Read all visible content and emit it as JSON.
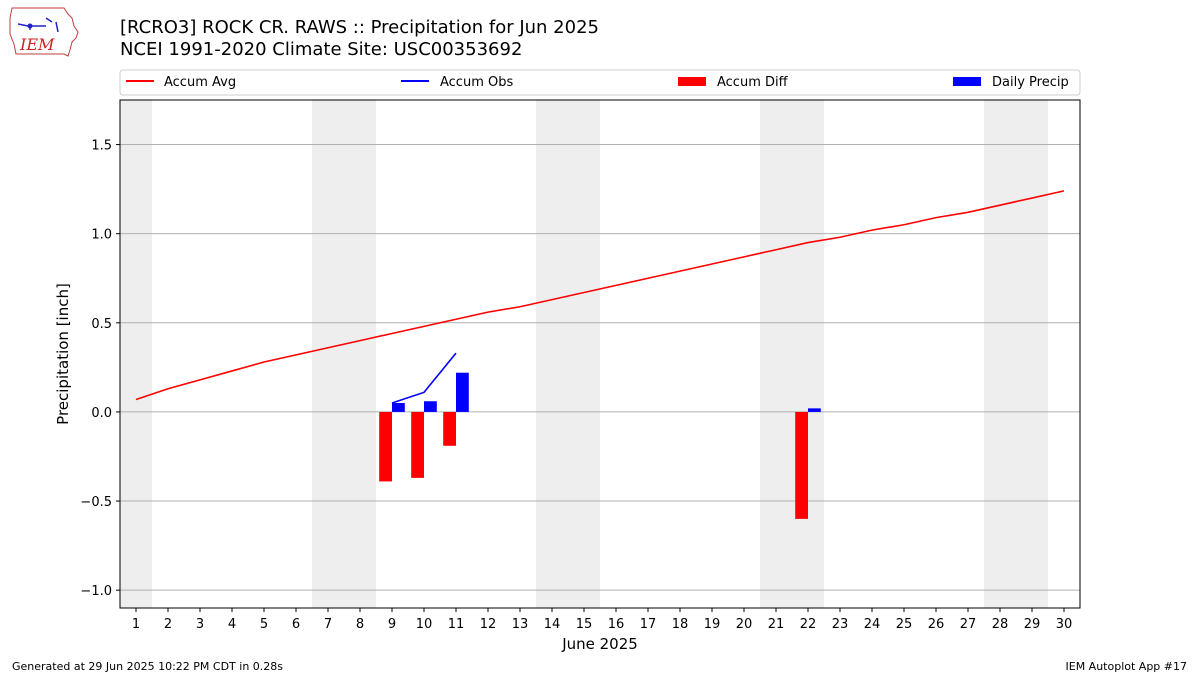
{
  "header": {
    "title_line1": "[RCRO3] ROCK CR. RAWS :: Precipitation for Jun 2025",
    "title_line2": "NCEI 1991-2020 Climate Site: USC00353692",
    "logo_text": "IEM"
  },
  "footer": {
    "left": "Generated at 29 Jun 2025 10:22 PM CDT in 0.28s",
    "right": "IEM Autoplot App #17"
  },
  "colors": {
    "accum_avg": "#ff0000",
    "accum_obs": "#0000ff",
    "accum_diff": "#ff0000",
    "daily_precip": "#0000ff",
    "weekend_shade": "#eeeeee",
    "grid": "#b0b0b0"
  },
  "chart_data": {
    "type": "bar",
    "title": "[RCRO3] ROCK CR. RAWS :: Precipitation for Jun 2025",
    "subtitle": "NCEI 1991-2020 Climate Site: USC00353692",
    "xlabel": "June 2025",
    "ylabel": "Precipitation [inch]",
    "xlim": [
      0.5,
      30.5
    ],
    "ylim": [
      -1.1,
      1.75
    ],
    "yticks": [
      -1.0,
      -0.5,
      0.0,
      0.5,
      1.0,
      1.5
    ],
    "ytick_labels": [
      "−1.0",
      "−0.5",
      "0.0",
      "0.5",
      "1.0",
      "1.5"
    ],
    "days": [
      1,
      2,
      3,
      4,
      5,
      6,
      7,
      8,
      9,
      10,
      11,
      12,
      13,
      14,
      15,
      16,
      17,
      18,
      19,
      20,
      21,
      22,
      23,
      24,
      25,
      26,
      27,
      28,
      29,
      30
    ],
    "grid": "y",
    "legend_position": "top",
    "weekend_shading": [
      [
        0.5,
        1.5
      ],
      [
        6.5,
        8.5
      ],
      [
        13.5,
        15.5
      ],
      [
        20.5,
        22.5
      ],
      [
        27.5,
        29.5
      ]
    ],
    "series": [
      {
        "name": "Accum Avg",
        "type": "line",
        "x": [
          1,
          2,
          3,
          4,
          5,
          6,
          7,
          8,
          9,
          10,
          11,
          12,
          13,
          14,
          15,
          16,
          17,
          18,
          19,
          20,
          21,
          22,
          23,
          24,
          25,
          26,
          27,
          28,
          29,
          30
        ],
        "values": [
          0.07,
          0.13,
          0.18,
          0.23,
          0.28,
          0.32,
          0.36,
          0.4,
          0.44,
          0.48,
          0.52,
          0.56,
          0.59,
          0.63,
          0.67,
          0.71,
          0.75,
          0.79,
          0.83,
          0.87,
          0.91,
          0.95,
          0.98,
          1.02,
          1.05,
          1.09,
          1.12,
          1.16,
          1.2,
          1.24
        ]
      },
      {
        "name": "Accum Obs",
        "type": "line",
        "x": [
          9,
          10,
          11
        ],
        "values": [
          0.05,
          0.11,
          0.33
        ]
      },
      {
        "name": "Accum Diff",
        "type": "bar",
        "x": [
          9,
          10,
          11,
          22
        ],
        "values": [
          -0.39,
          -0.37,
          -0.19,
          -0.6
        ]
      },
      {
        "name": "Daily Precip",
        "type": "bar",
        "x": [
          9,
          10,
          11,
          22
        ],
        "values": [
          0.05,
          0.06,
          0.22,
          0.02
        ]
      }
    ]
  }
}
